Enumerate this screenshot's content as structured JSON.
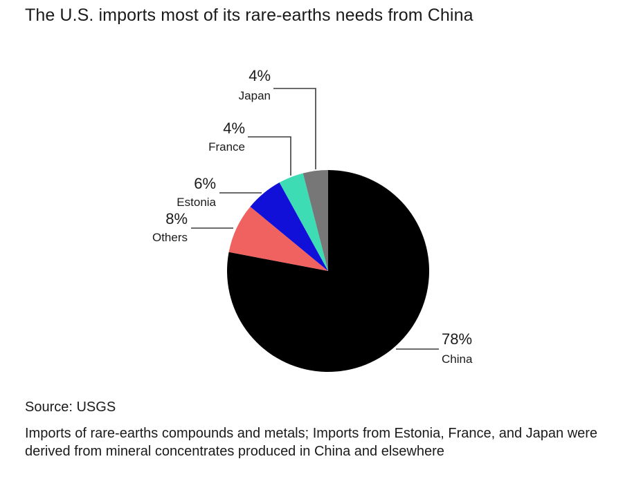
{
  "chart_data": {
    "type": "pie",
    "title": "The U.S. imports most of its rare-earths needs from China",
    "categories": [
      "China",
      "Others",
      "Estonia",
      "France",
      "Japan"
    ],
    "values": [
      78,
      8,
      6,
      4,
      4
    ],
    "value_labels": [
      "78%",
      "8%",
      "6%",
      "4%",
      "4%"
    ],
    "colors": [
      "#000000",
      "#f0625f",
      "#1010d8",
      "#3ddcb4",
      "#777777"
    ],
    "legend": "none"
  },
  "source": "Source: USGS",
  "note": "Imports of rare-earths compounds and metals; Imports from Estonia, France, and Japan were derived from mineral concentrates produced in China and elsewhere"
}
